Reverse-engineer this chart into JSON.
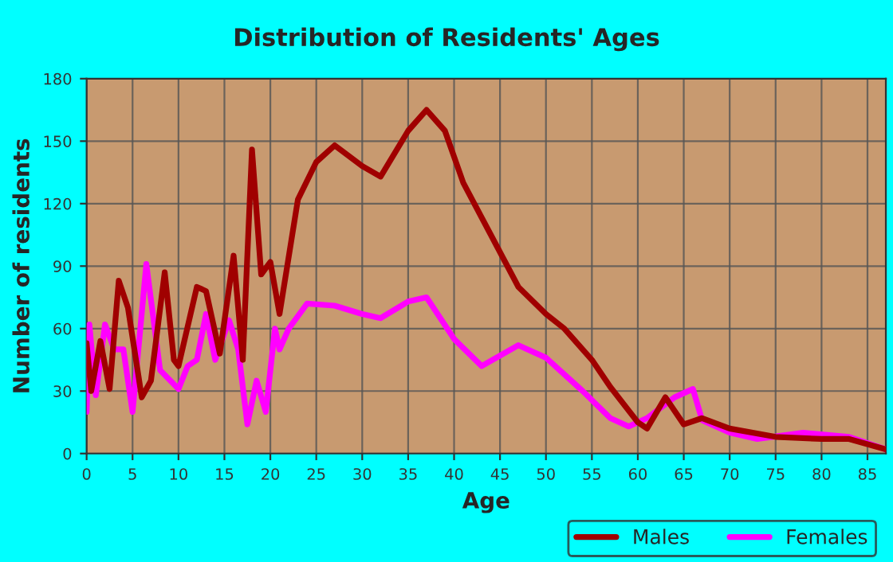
{
  "chart_data": {
    "type": "line",
    "title": "Distribution of Residents' Ages",
    "xlabel": "Age",
    "ylabel": "Number of residents",
    "xlim": [
      0,
      87
    ],
    "xticks": [
      0,
      5,
      10,
      15,
      20,
      25,
      30,
      35,
      40,
      45,
      50,
      55,
      60,
      65,
      70,
      75,
      80,
      85
    ],
    "ylim": [
      0,
      180
    ],
    "yticks": [
      0,
      30,
      60,
      90,
      120,
      150,
      180
    ],
    "grid": true,
    "legend": "bottom",
    "marker": "none",
    "line_style": "solid",
    "series": [
      {
        "name": "Males",
        "color": "#a00000",
        "x": [
          0,
          0.5,
          1.5,
          2.5,
          3.5,
          4.5,
          6,
          7,
          8.5,
          9.5,
          10,
          12,
          13,
          14.5,
          16,
          17,
          18,
          19,
          20,
          21,
          23,
          25,
          27,
          30,
          32,
          35,
          37,
          39,
          41,
          44,
          47,
          50,
          52,
          55,
          57,
          60,
          61,
          63,
          65,
          67,
          70,
          75,
          80,
          83,
          87
        ],
        "values": [
          53,
          30,
          54,
          31,
          83,
          70,
          27,
          35,
          87,
          45,
          42,
          80,
          78,
          48,
          95,
          45,
          146,
          86,
          92,
          67,
          122,
          140,
          148,
          138,
          133,
          155,
          165,
          155,
          130,
          105,
          80,
          67,
          60,
          45,
          32,
          15,
          12,
          27,
          14,
          17,
          12,
          8,
          7,
          7,
          2
        ]
      },
      {
        "name": "Females",
        "color": "#ff00ff",
        "x": [
          0,
          0.3,
          1,
          2,
          3,
          4,
          5,
          6.5,
          8,
          10,
          11,
          12,
          13,
          14,
          15.5,
          16.5,
          17.5,
          18.5,
          19.5,
          20.5,
          21,
          22,
          24,
          27,
          30,
          32,
          35,
          37,
          40,
          43,
          47,
          50,
          54,
          57,
          59,
          61,
          64,
          66,
          67,
          70,
          73,
          78,
          83,
          87
        ],
        "values": [
          20,
          62,
          28,
          62,
          50,
          50,
          20,
          91,
          40,
          31,
          42,
          45,
          67,
          45,
          64,
          50,
          14,
          35,
          20,
          60,
          50,
          60,
          72,
          71,
          67,
          65,
          73,
          75,
          55,
          42,
          52,
          46,
          30,
          17,
          13,
          17,
          27,
          31,
          16,
          10,
          7,
          10,
          8,
          2
        ]
      }
    ]
  }
}
